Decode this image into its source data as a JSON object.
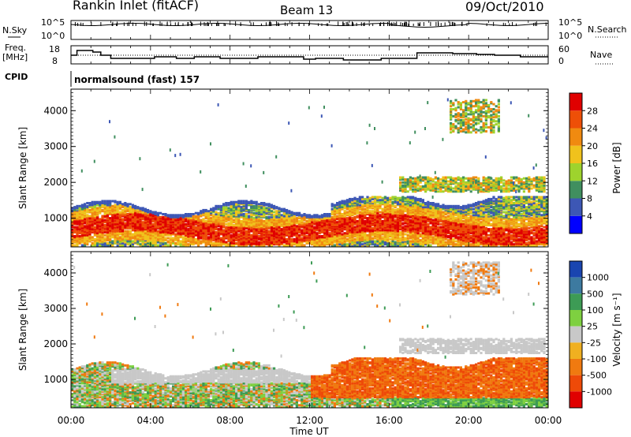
{
  "header": {
    "station": "Rankin Inlet (fitACF)",
    "beam": "Beam 13",
    "date": "09/Oct/2010"
  },
  "panels": {
    "nsky": {
      "label": "N.Sky",
      "tick_top": "10^5",
      "tick_bottom": "10^0",
      "right_label": "N.Search",
      "right_tick_top": "10^5",
      "right_tick_bottom": "10^0"
    },
    "freq": {
      "label_line1": "Freq.",
      "label_line2": "[MHz]",
      "tick_top": "18",
      "tick_bottom": "8",
      "right_label": "Nave",
      "right_tick_top": "60",
      "right_tick_bottom": "0"
    },
    "cpid": {
      "label": "CPID",
      "value": "normalsound (fast) 157"
    }
  },
  "chart_data": [
    {
      "type": "heatmap",
      "panel": "power",
      "ylabel": "Slant Range [km]",
      "xlabel": "",
      "ylim": [
        200,
        4600
      ],
      "y_ticks": [
        "1000",
        "2000",
        "3000",
        "4000"
      ],
      "colorbar_label": "Power [dB]",
      "colorbar_ticks": [
        "4",
        "8",
        "12",
        "16",
        "20",
        "24",
        "28"
      ],
      "colorbar_colors": [
        "#0000ff",
        "#3d57b5",
        "#408f5f",
        "#9ed32d",
        "#f0c21c",
        "#f08a10",
        "#ee4f07",
        "#e00000"
      ],
      "bands": [
        {
          "x_hours": [
            0,
            24
          ],
          "range_km": [
            300,
            1500
          ],
          "level": "high"
        },
        {
          "x_hours": [
            17,
            24
          ],
          "range_km": [
            1800,
            2100
          ],
          "level": "medium"
        },
        {
          "x_hours": [
            19,
            21
          ],
          "range_km": [
            3500,
            4300
          ],
          "level": "medium"
        }
      ]
    },
    {
      "type": "heatmap",
      "panel": "velocity",
      "ylabel": "Slant Range [km]",
      "xlabel": "Time UT",
      "ylim": [
        200,
        4600
      ],
      "y_ticks": [
        "1000",
        "2000",
        "3000",
        "4000"
      ],
      "x_ticks": [
        "00:00",
        "04:00",
        "08:00",
        "12:00",
        "16:00",
        "20:00",
        "00:00"
      ],
      "colorbar_label": "Velocity [m s⁻¹]",
      "colorbar_ticks": [
        "1000",
        "500",
        "100",
        "25",
        "-25",
        "-100",
        "-500",
        "-1000"
      ],
      "colorbar_colors": [
        "#1a45b0",
        "#3d7aa0",
        "#3d9b55",
        "#7ed040",
        "#c8c8c8",
        "#f0b020",
        "#f07a10",
        "#ee4a08",
        "#e00000"
      ],
      "bands": [
        {
          "x_hours": [
            0,
            24
          ],
          "range_km": [
            300,
            1400
          ],
          "level": "mixed"
        },
        {
          "x_hours": [
            17,
            24
          ],
          "range_km": [
            1800,
            2100
          ],
          "level": "gray"
        },
        {
          "x_hours": [
            19,
            21
          ],
          "range_km": [
            3500,
            4300
          ],
          "level": "gray"
        }
      ]
    }
  ]
}
